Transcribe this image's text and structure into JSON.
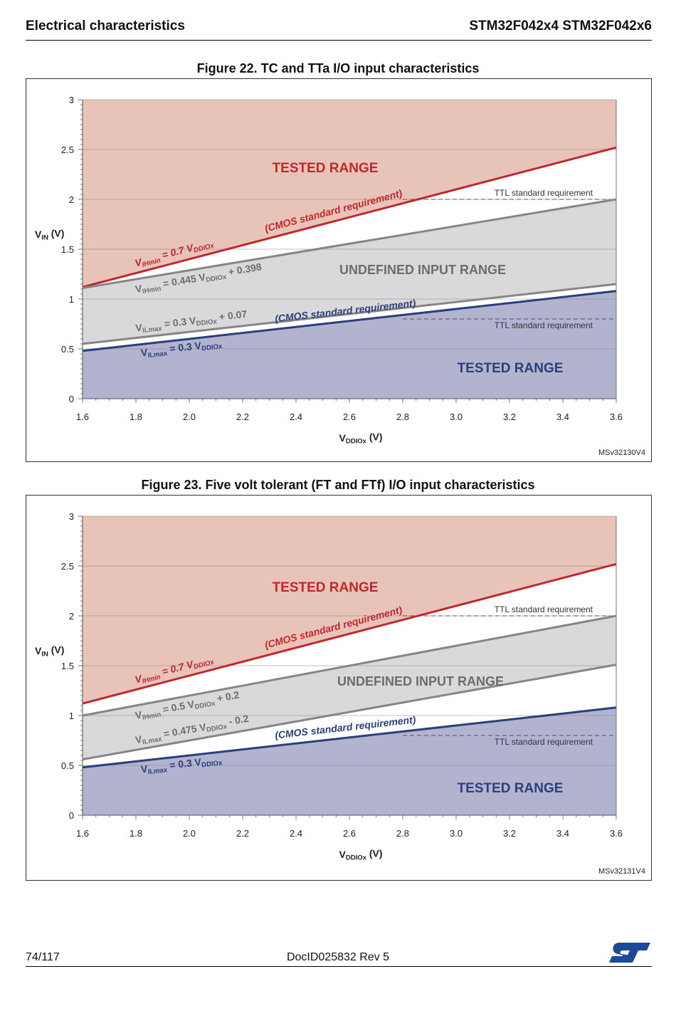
{
  "header": {
    "left": "Electrical characteristics",
    "right": "STM32F042x4 STM32F042x6"
  },
  "footer": {
    "page": "74/117",
    "doc_id": "DocID025832 Rev 5",
    "logo_icon": "st-logo-icon"
  },
  "colors": {
    "tested_high": "#e8c3b8",
    "tested_low": "#b1b3cf",
    "undefined": "#d9d9db",
    "red_line": "#c1272d",
    "blue_line": "#2b3f7a",
    "gray_line": "#868686",
    "red_text": "#c1272d",
    "blue_text": "#2b3f7a",
    "gray_text": "#6d6d6d"
  },
  "figures": [
    {
      "title": "Figure 22. TC and TTa I/O input characteristics",
      "code": "MSv32130V4",
      "labels": {
        "ylabel_main": "V",
        "ylabel_sub": "IN",
        "ylabel_tail": " (V)",
        "xlabel_main": "V",
        "xlabel_sub": "DDIOx",
        "xlabel_tail": " (V)",
        "tested_top": "TESTED RANGE",
        "tested_bottom": "TESTED RANGE",
        "undefined": "UNDEFINED INPUT RANGE",
        "ttl_top": "TTL standard requirement",
        "ttl_bottom": "TTL standard requirement",
        "cmos_top": "(CMOS standard requirement)",
        "cmos_bottom": "(CMOS standard requirement)",
        "vihmin_cmos": {
          "v": "V",
          "sub": "IHmin",
          "mid": " = 0.7 V",
          "sub2": "DDIOx",
          "tail": ""
        },
        "vihmin_gray": {
          "v": "V",
          "sub": "IHmin",
          "mid": " = 0.445 V",
          "sub2": "DDIOx",
          "tail": " + 0.398"
        },
        "vilmax_gray": {
          "v": "V",
          "sub": "ILmax",
          "mid": " = 0.3 V",
          "sub2": "DDIOx",
          "tail": " + 0.07"
        },
        "vilmax_cmos": {
          "v": "V",
          "sub": "ILmax",
          "mid": " = 0.3 V",
          "sub2": "DDIOx",
          "tail": ""
        }
      },
      "chart_data": {
        "type": "line",
        "xlabel": "VDDIOx (V)",
        "ylabel": "VIN (V)",
        "xlim": [
          1.6,
          3.6
        ],
        "ylim": [
          0,
          3
        ],
        "x_ticks": [
          "1.6",
          "1.8",
          "2.0",
          "2.2",
          "2.4",
          "2.6",
          "2.8",
          "3.0",
          "3.2",
          "3.4",
          "3.6"
        ],
        "y_ticks": [
          "0",
          "0.5",
          "1",
          "1.5",
          "2",
          "2.5",
          "3"
        ],
        "grid": true,
        "series": [
          {
            "name": "VIHmin = 0.7 VDDIOx",
            "slope": 0.7,
            "intercept": 0,
            "color": "red"
          },
          {
            "name": "VIHmin = 0.445 VDDIOx + 0.398",
            "slope": 0.445,
            "intercept": 0.398,
            "color": "gray"
          },
          {
            "name": "VILmax = 0.3 VDDIOx + 0.07",
            "slope": 0.3,
            "intercept": 0.07,
            "color": "gray"
          },
          {
            "name": "VILmax = 0.3 VDDIOx",
            "slope": 0.3,
            "intercept": 0,
            "color": "blue"
          }
        ],
        "ttl_levels": {
          "high": 2.0,
          "low": 0.8,
          "from_x": 2.8
        }
      }
    },
    {
      "title": "Figure 23. Five volt tolerant (FT and FTf) I/O input characteristics",
      "code": "MSv32131V4",
      "labels": {
        "ylabel_main": "V",
        "ylabel_sub": "IN",
        "ylabel_tail": " (V)",
        "xlabel_main": "V",
        "xlabel_sub": "DDIOx",
        "xlabel_tail": " (V)",
        "tested_top": "TESTED RANGE",
        "tested_bottom": "TESTED RANGE",
        "undefined": "UNDEFINED INPUT RANGE",
        "ttl_top": "TTL standard requirement",
        "ttl_bottom": "TTL standard requirement",
        "cmos_top": "(CMOS standard requirement)",
        "cmos_bottom": "(CMOS standard requirement)",
        "vihmin_cmos": {
          "v": "V",
          "sub": "IHmin",
          "mid": " = 0.7 V",
          "sub2": "DDIOx",
          "tail": ""
        },
        "vihmin_gray": {
          "v": "V",
          "sub": "IHmin",
          "mid": " = 0.5 V",
          "sub2": "DDIOx",
          "tail": " + 0.2"
        },
        "vilmax_gray": {
          "v": "V",
          "sub": "ILmax",
          "mid": " = 0.475 V",
          "sub2": "DDIOx",
          "tail": " - 0.2"
        },
        "vilmax_cmos": {
          "v": "V",
          "sub": "ILmax",
          "mid": " = 0.3 V",
          "sub2": "DDIOx",
          "tail": ""
        }
      },
      "chart_data": {
        "type": "line",
        "xlabel": "VDDIOx (V)",
        "ylabel": "VIN (V)",
        "xlim": [
          1.6,
          3.6
        ],
        "ylim": [
          0,
          3
        ],
        "x_ticks": [
          "1.6",
          "1.8",
          "2.0",
          "2.2",
          "2.4",
          "2.6",
          "2.8",
          "3.0",
          "3.2",
          "3.4",
          "3.6"
        ],
        "y_ticks": [
          "0",
          "0.5",
          "1",
          "1.5",
          "2",
          "2.5",
          "3"
        ],
        "grid": true,
        "series": [
          {
            "name": "VIHmin = 0.7 VDDIOx",
            "slope": 0.7,
            "intercept": 0,
            "color": "red"
          },
          {
            "name": "VIHmin = 0.5 VDDIOx + 0.2",
            "slope": 0.5,
            "intercept": 0.2,
            "color": "gray"
          },
          {
            "name": "VILmax = 0.475 VDDIOx - 0.2",
            "slope": 0.475,
            "intercept": -0.2,
            "color": "gray"
          },
          {
            "name": "VILmax = 0.3 VDDIOx",
            "slope": 0.3,
            "intercept": 0,
            "color": "blue"
          }
        ],
        "ttl_levels": {
          "high": 2.0,
          "low": 0.8,
          "from_x": 2.8
        }
      }
    }
  ]
}
